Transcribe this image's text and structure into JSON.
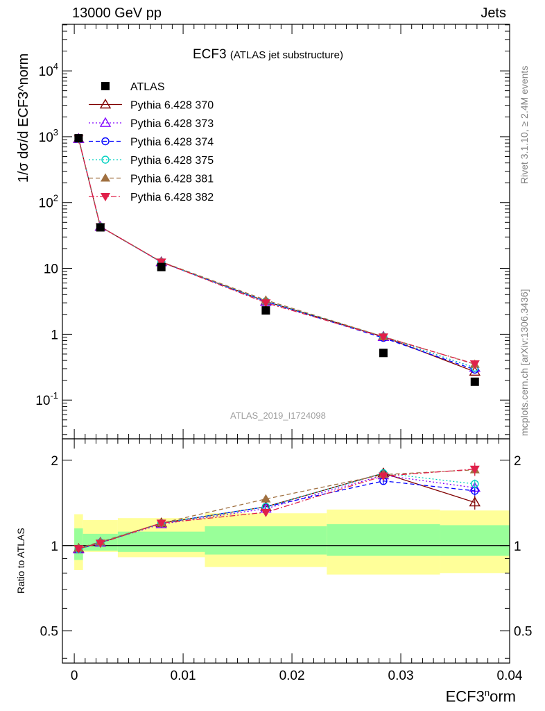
{
  "header": {
    "energy_label": "13000 GeV pp",
    "process_label": "Jets",
    "title_main": "ECF3",
    "title_sub": "(ATLAS jet substructure)",
    "analysis_id": "ATLAS_2019_I1724098",
    "side_version": "Rivet 3.1.10, ≥ 2.4M events",
    "side_site": "mcplots.cern.ch [arXiv:1306.3436]"
  },
  "chart_data": [
    {
      "type": "scatter",
      "panel": "main",
      "ylabel": "1/σ dσ/d ECF3^norm",
      "yscale": "log",
      "ylim": [
        0.025,
        50000
      ],
      "ytick_labels": [
        "10^{-1}",
        "1",
        "10",
        "10^{2}",
        "10^{3}",
        "10^{4}"
      ],
      "x": [
        0.0004,
        0.0024,
        0.008,
        0.0176,
        0.0284,
        0.0368
      ],
      "series": [
        {
          "name": "ATLAS",
          "color": "#000000",
          "marker": "square",
          "values": [
            950,
            42,
            10.5,
            2.3,
            0.52,
            0.19
          ]
        },
        {
          "name": "Pythia 6.428 370",
          "color": "#800000",
          "marker": "triangle-up-open",
          "line": "solid",
          "values": [
            930,
            43,
            12.5,
            3.15,
            0.92,
            0.27
          ]
        },
        {
          "name": "Pythia 6.428 373",
          "color": "#8000ff",
          "marker": "triangle-up-open",
          "line": "dotted",
          "values": [
            925,
            43,
            12.4,
            3.1,
            0.91,
            0.31
          ]
        },
        {
          "name": "Pythia 6.428 374",
          "color": "#0000ff",
          "marker": "circle-open",
          "line": "dashed",
          "values": [
            925,
            43,
            12.5,
            3.15,
            0.88,
            0.29
          ]
        },
        {
          "name": "Pythia 6.428 375",
          "color": "#00d0c0",
          "marker": "circle-open",
          "line": "dotted",
          "values": [
            925,
            43,
            12.5,
            3.15,
            0.92,
            0.31
          ]
        },
        {
          "name": "Pythia 6.428 381",
          "color": "#a07040",
          "marker": "triangle-up",
          "line": "dashed",
          "values": [
            930,
            43,
            12.6,
            3.3,
            0.92,
            0.35
          ]
        },
        {
          "name": "Pythia 6.428 382",
          "color": "#e0204a",
          "marker": "triangle-down",
          "line": "dashdot",
          "values": [
            930,
            43,
            12.5,
            3.0,
            0.91,
            0.355
          ]
        }
      ]
    },
    {
      "type": "scatter",
      "panel": "ratio",
      "xlabel": "ECF3^norm",
      "ylabel": "Ratio to ATLAS",
      "yscale": "log",
      "ylim": [
        0.4,
        2.4
      ],
      "ytick_labels": [
        "0.5",
        "1",
        "2"
      ],
      "xlim": [
        -0.0001,
        0.04
      ],
      "xtick_labels": [
        "0",
        "0.01",
        "0.02",
        "0.03",
        "0.04"
      ],
      "x": [
        0.0004,
        0.0024,
        0.008,
        0.0176,
        0.0284,
        0.0368
      ],
      "bands": {
        "bin_edges": [
          0,
          0.0008,
          0.004,
          0.012,
          0.0232,
          0.0336,
          0.04
        ],
        "inner": [
          [
            0.89,
            1.15
          ],
          [
            0.96,
            1.1
          ],
          [
            0.95,
            1.12
          ],
          [
            0.93,
            1.17
          ],
          [
            0.92,
            1.19
          ],
          [
            0.92,
            1.18
          ]
        ],
        "outer": [
          [
            0.82,
            1.29
          ],
          [
            0.95,
            1.23
          ],
          [
            0.91,
            1.25
          ],
          [
            0.84,
            1.3
          ],
          [
            0.79,
            1.34
          ],
          [
            0.8,
            1.33
          ]
        ],
        "inner_color": "#99ff99",
        "outer_color": "#ffff99"
      },
      "series": [
        {
          "name": "Pythia 6.428 370",
          "values": [
            0.975,
            1.025,
            1.2,
            1.37,
            1.8,
            1.42
          ],
          "errors": [
            0.01,
            0.01,
            0.01,
            0.02,
            0.04,
            0.08
          ]
        },
        {
          "name": "Pythia 6.428 373",
          "values": [
            0.97,
            1.025,
            1.19,
            1.35,
            1.77,
            1.6
          ],
          "errors": [
            0.01,
            0.01,
            0.01,
            0.02,
            0.04,
            0.06
          ]
        },
        {
          "name": "Pythia 6.428 374",
          "values": [
            0.97,
            1.025,
            1.2,
            1.37,
            1.69,
            1.56
          ],
          "errors": [
            0.01,
            0.01,
            0.01,
            0.02,
            0.04,
            0.06
          ]
        },
        {
          "name": "Pythia 6.428 375",
          "values": [
            0.97,
            1.025,
            1.2,
            1.37,
            1.8,
            1.65
          ],
          "errors": [
            0.01,
            0.01,
            0.01,
            0.02,
            0.04,
            0.06
          ]
        },
        {
          "name": "Pythia 6.428 381",
          "values": [
            0.98,
            1.03,
            1.2,
            1.46,
            1.78,
            1.85
          ],
          "errors": [
            0.01,
            0.01,
            0.01,
            0.02,
            0.04,
            0.08
          ]
        },
        {
          "name": "Pythia 6.428 382",
          "values": [
            0.975,
            1.02,
            1.2,
            1.31,
            1.76,
            1.86
          ],
          "errors": [
            0.01,
            0.01,
            0.01,
            0.02,
            0.04,
            0.1
          ]
        }
      ]
    }
  ]
}
